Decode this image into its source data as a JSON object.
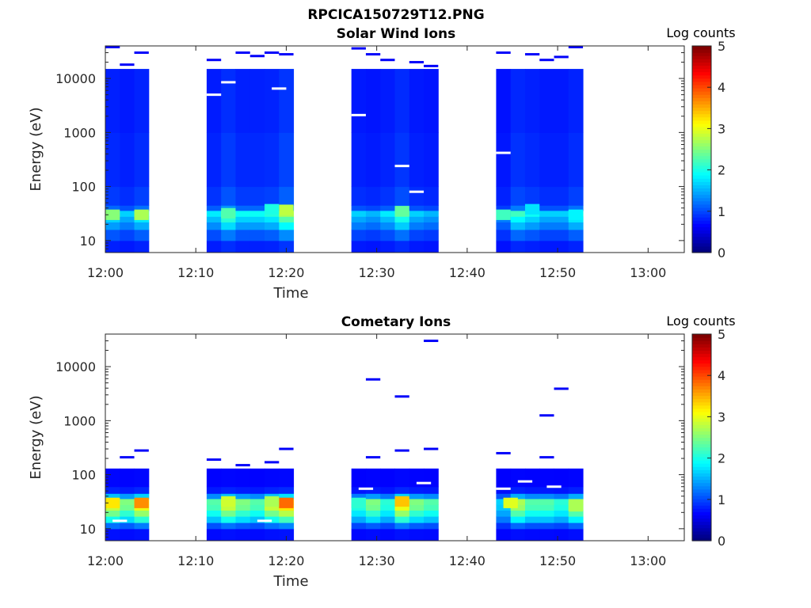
{
  "figure": {
    "title": "RPCICA150729T12.PNG"
  },
  "colors": {
    "background": "#ffffff",
    "axis": "#262626",
    "colormap": "jet"
  },
  "chart_data": [
    {
      "type": "heatmap",
      "title": "Solar Wind Ions",
      "xlabel": "Time",
      "ylabel": "Energy (eV)",
      "yscale": "log",
      "ylim": [
        6,
        40000
      ],
      "xlim": [
        "12:00",
        "13:04"
      ],
      "x_ticks": [
        "12:00",
        "12:10",
        "12:20",
        "12:30",
        "12:40",
        "12:50",
        "13:00"
      ],
      "y_ticks": [
        "10",
        "100",
        "1000",
        "10000"
      ],
      "colorbar": {
        "label": "Log counts",
        "min": 0,
        "max": 5,
        "ticks": [
          "0",
          "1",
          "2",
          "3",
          "4",
          "5"
        ]
      },
      "time_columns_min": [
        [
          0,
          1.6
        ],
        [
          1.6,
          3.2
        ],
        [
          3.2,
          4.8
        ],
        [
          11.2,
          12.8
        ],
        [
          12.8,
          14.4
        ],
        [
          14.4,
          16
        ],
        [
          16,
          17.6
        ],
        [
          17.6,
          19.2
        ],
        [
          19.2,
          20.8
        ],
        [
          27.2,
          28.8
        ],
        [
          28.8,
          30.4
        ],
        [
          30.4,
          32
        ],
        [
          32,
          33.6
        ],
        [
          33.6,
          35.2
        ],
        [
          35.2,
          36.8
        ],
        [
          43.2,
          44.8
        ],
        [
          44.8,
          46.4
        ],
        [
          46.4,
          48
        ],
        [
          48,
          49.6
        ],
        [
          49.6,
          51.2
        ],
        [
          51.2,
          52.8
        ]
      ],
      "energy_bands_eV": [
        [
          6,
          10,
          0.2
        ],
        [
          10,
          16,
          0.5
        ],
        [
          16,
          22,
          0.9
        ],
        [
          22,
          28,
          1.2
        ],
        [
          28,
          36,
          1.5
        ],
        [
          36,
          45,
          0.6
        ],
        [
          45,
          100,
          0.35
        ],
        [
          100,
          1000,
          0.25
        ],
        [
          1000,
          15000,
          0.2
        ]
      ],
      "column_intensity": [
        [
          1.0,
          0.8,
          1.1
        ],
        [
          0.9,
          1.4,
          1.0,
          1.0,
          1.1,
          1.6
        ],
        [
          0.8,
          0.7,
          0.9,
          1.3,
          0.8,
          0.7
        ],
        [
          0.6,
          1.2,
          1.0,
          0.8,
          0.8,
          1.1
        ]
      ],
      "peaks": [
        {
          "x": 0.8,
          "e": 30,
          "v": 2.2
        },
        {
          "x": 4.0,
          "e": 30,
          "v": 2.4
        },
        {
          "x": 13.6,
          "e": 32,
          "v": 1.9
        },
        {
          "x": 20.0,
          "e": 37,
          "v": 2.5
        },
        {
          "x": 18.4,
          "e": 38,
          "v": 1.6
        },
        {
          "x": 32.8,
          "e": 35,
          "v": 2.0
        },
        {
          "x": 44.0,
          "e": 30,
          "v": 1.8
        },
        {
          "x": 47.2,
          "e": 38,
          "v": 1.3
        },
        {
          "x": 52.0,
          "e": 30,
          "v": 1.4
        }
      ],
      "sparse_lines": [
        {
          "x": 0.8,
          "e": 38000,
          "v": 0.2
        },
        {
          "x": 2.4,
          "e": 18000,
          "v": 0.2
        },
        {
          "x": 4.0,
          "e": 30000,
          "v": 0.2
        },
        {
          "x": 12.0,
          "e": 22000,
          "v": 0.2
        },
        {
          "x": 15.2,
          "e": 30000,
          "v": 0.2
        },
        {
          "x": 16.8,
          "e": 26000,
          "v": 0.2
        },
        {
          "x": 18.4,
          "e": 30000,
          "v": 0.2
        },
        {
          "x": 20.0,
          "e": 28000,
          "v": 0.2
        },
        {
          "x": 28.0,
          "e": 36000,
          "v": 0.2
        },
        {
          "x": 29.6,
          "e": 28000,
          "v": 0.2
        },
        {
          "x": 31.2,
          "e": 22000,
          "v": 0.2
        },
        {
          "x": 34.4,
          "e": 20000,
          "v": 0.2
        },
        {
          "x": 36.0,
          "e": 17000,
          "v": 0.2
        },
        {
          "x": 44.0,
          "e": 30000,
          "v": 0.2
        },
        {
          "x": 47.2,
          "e": 28000,
          "v": 0.2
        },
        {
          "x": 48.8,
          "e": 22000,
          "v": 0.2
        },
        {
          "x": 50.4,
          "e": 25000,
          "v": 0.2
        },
        {
          "x": 52.0,
          "e": 38000,
          "v": 0.2
        }
      ],
      "gaps": [
        {
          "x": 12.0,
          "e": 5000
        },
        {
          "x": 28.0,
          "e": 2100
        },
        {
          "x": 32.8,
          "e": 240
        },
        {
          "x": 34.4,
          "e": 80
        },
        {
          "x": 44.0,
          "e": 420
        },
        {
          "x": 19.2,
          "e": 6500
        },
        {
          "x": 13.6,
          "e": 8500
        }
      ]
    },
    {
      "type": "heatmap",
      "title": "Cometary Ions",
      "xlabel": "Time",
      "ylabel": "Energy (eV)",
      "yscale": "log",
      "ylim": [
        6,
        40000
      ],
      "xlim": [
        "12:00",
        "13:04"
      ],
      "x_ticks": [
        "12:00",
        "12:10",
        "12:20",
        "12:30",
        "12:40",
        "12:50",
        "13:00"
      ],
      "y_ticks": [
        "10",
        "100",
        "1000",
        "10000"
      ],
      "colorbar": {
        "label": "Log counts",
        "min": 0,
        "max": 5,
        "ticks": [
          "0",
          "1",
          "2",
          "3",
          "4",
          "5"
        ]
      },
      "time_columns_min": [
        [
          0,
          1.6
        ],
        [
          1.6,
          3.2
        ],
        [
          3.2,
          4.8
        ],
        [
          11.2,
          12.8
        ],
        [
          12.8,
          14.4
        ],
        [
          14.4,
          16
        ],
        [
          16,
          17.6
        ],
        [
          17.6,
          19.2
        ],
        [
          19.2,
          20.8
        ],
        [
          27.2,
          28.8
        ],
        [
          28.8,
          30.4
        ],
        [
          30.4,
          32
        ],
        [
          32,
          33.6
        ],
        [
          33.6,
          35.2
        ],
        [
          35.2,
          36.8
        ],
        [
          43.2,
          44.8
        ],
        [
          44.8,
          46.4
        ],
        [
          46.4,
          48
        ],
        [
          48,
          49.6
        ],
        [
          49.6,
          51.2
        ],
        [
          51.2,
          52.8
        ]
      ],
      "energy_bands_eV": [
        [
          6,
          10,
          0.1
        ],
        [
          10,
          13,
          0.6
        ],
        [
          13,
          17,
          1.4
        ],
        [
          17,
          22,
          1.9
        ],
        [
          22,
          28,
          2.3
        ],
        [
          28,
          36,
          2.4
        ],
        [
          36,
          45,
          1.0
        ],
        [
          45,
          60,
          0.2
        ],
        [
          60,
          130,
          0.05
        ]
      ],
      "column_intensity": [
        [
          1.1,
          0.9,
          1.2
        ],
        [
          0.8,
          1.1,
          0.9,
          0.8,
          1.1,
          1.3
        ],
        [
          0.7,
          0.9,
          0.7,
          1.2,
          0.9,
          0.8
        ],
        [
          0.5,
          1.0,
          0.8,
          0.8,
          0.7,
          1.0
        ]
      ],
      "peaks": [
        {
          "x": 4.0,
          "e": 30,
          "v": 3.5
        },
        {
          "x": 0.8,
          "e": 30,
          "v": 3.0
        },
        {
          "x": 20.0,
          "e": 30,
          "v": 3.7
        },
        {
          "x": 13.6,
          "e": 32,
          "v": 2.6
        },
        {
          "x": 32.8,
          "e": 32,
          "v": 3.2
        },
        {
          "x": 18.4,
          "e": 32,
          "v": 2.4
        },
        {
          "x": 44.8,
          "e": 30,
          "v": 2.7
        },
        {
          "x": 52.0,
          "e": 26,
          "v": 2.4
        },
        {
          "x": 28.0,
          "e": 30,
          "v": 1.7
        }
      ],
      "sparse_lines": [
        {
          "x": 4.0,
          "e": 280,
          "v": 0.2
        },
        {
          "x": 2.4,
          "e": 210,
          "v": 0.2
        },
        {
          "x": 12.0,
          "e": 190,
          "v": 0.2
        },
        {
          "x": 15.2,
          "e": 150,
          "v": 0.2
        },
        {
          "x": 18.4,
          "e": 170,
          "v": 0.2
        },
        {
          "x": 20.0,
          "e": 300,
          "v": 0.2
        },
        {
          "x": 29.6,
          "e": 5800,
          "v": 0.2
        },
        {
          "x": 32.8,
          "e": 2800,
          "v": 0.2
        },
        {
          "x": 36.0,
          "e": 30000,
          "v": 0.2
        },
        {
          "x": 29.6,
          "e": 210,
          "v": 0.2
        },
        {
          "x": 32.8,
          "e": 280,
          "v": 0.2
        },
        {
          "x": 36.0,
          "e": 300,
          "v": 0.2
        },
        {
          "x": 44.0,
          "e": 250,
          "v": 0.2
        },
        {
          "x": 48.8,
          "e": 1250,
          "v": 0.2
        },
        {
          "x": 50.4,
          "e": 3900,
          "v": 0.2
        },
        {
          "x": 48.8,
          "e": 210,
          "v": 0.2
        }
      ],
      "gaps": [
        {
          "x": 1.6,
          "e": 14
        },
        {
          "x": 17.6,
          "e": 14
        },
        {
          "x": 28.8,
          "e": 55
        },
        {
          "x": 35.2,
          "e": 70
        },
        {
          "x": 46.4,
          "e": 75
        },
        {
          "x": 49.6,
          "e": 60
        },
        {
          "x": 44.0,
          "e": 55
        }
      ]
    }
  ]
}
